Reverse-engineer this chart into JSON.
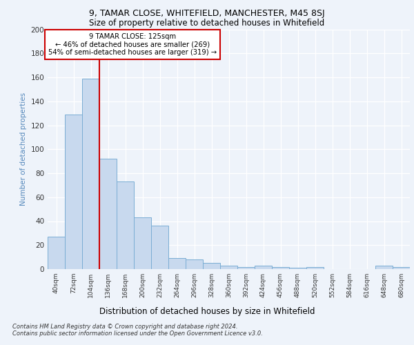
{
  "title1": "9, TAMAR CLOSE, WHITEFIELD, MANCHESTER, M45 8SJ",
  "title2": "Size of property relative to detached houses in Whitefield",
  "xlabel": "Distribution of detached houses by size in Whitefield",
  "ylabel": "Number of detached properties",
  "categories": [
    "40sqm",
    "72sqm",
    "104sqm",
    "136sqm",
    "168sqm",
    "200sqm",
    "232sqm",
    "264sqm",
    "296sqm",
    "328sqm",
    "360sqm",
    "392sqm",
    "424sqm",
    "456sqm",
    "488sqm",
    "520sqm",
    "552sqm",
    "584sqm",
    "616sqm",
    "648sqm",
    "680sqm"
  ],
  "values": [
    27,
    129,
    159,
    92,
    73,
    43,
    36,
    9,
    8,
    5,
    3,
    2,
    3,
    2,
    1,
    2,
    0,
    0,
    0,
    3,
    2
  ],
  "bar_color": "#c8d9ee",
  "bar_edge_color": "#7aadd4",
  "marker_label_line1": "9 TAMAR CLOSE: 125sqm",
  "marker_label_line2": "← 46% of detached houses are smaller (269)",
  "marker_label_line3": "54% of semi-detached houses are larger (319) →",
  "annotation_box_color": "#ffffff",
  "annotation_box_edge": "#cc0000",
  "vline_color": "#cc0000",
  "vline_x_index": 2.5,
  "ylim": [
    0,
    200
  ],
  "yticks": [
    0,
    20,
    40,
    60,
    80,
    100,
    120,
    140,
    160,
    180,
    200
  ],
  "footer1": "Contains HM Land Registry data © Crown copyright and database right 2024.",
  "footer2": "Contains public sector information licensed under the Open Government Licence v3.0.",
  "bg_color": "#eef3fa",
  "plot_bg_color": "#eef3fa"
}
